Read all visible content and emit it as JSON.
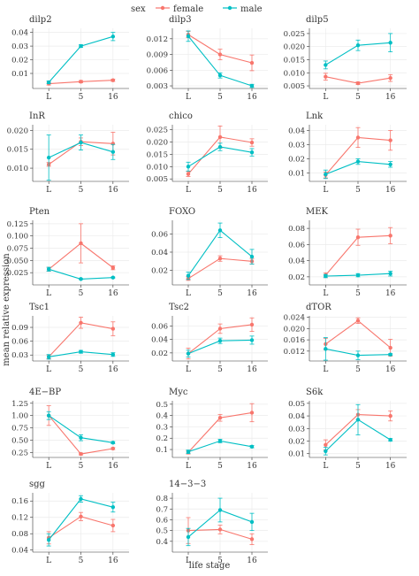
{
  "legend": {
    "title": "sex",
    "entries": [
      {
        "label": "female",
        "color": "#F8766D"
      },
      {
        "label": "male",
        "color": "#00BFC4"
      }
    ]
  },
  "xlabel": "life stage",
  "ylabel": "mean relative expression",
  "chart_data": [
    {
      "type": "line",
      "title": "dilp2",
      "categories": [
        "L",
        "5",
        "16"
      ],
      "yticks": [
        0.01,
        0.02,
        0.03,
        0.04
      ],
      "ylim": [
        -0.001,
        0.043
      ],
      "series": [
        {
          "name": "female",
          "values": [
            0.0025,
            0.004,
            0.005
          ],
          "err": [
            0.001,
            0.0008,
            0.0008
          ]
        },
        {
          "name": "male",
          "values": [
            0.0035,
            0.03,
            0.037
          ],
          "err": [
            0.001,
            0.001,
            0.003
          ]
        }
      ]
    },
    {
      "type": "line",
      "title": "dilp3",
      "categories": [
        "L",
        "5",
        "16"
      ],
      "yticks": [
        0.003,
        0.006,
        0.009,
        0.012
      ],
      "ylim": [
        0.0025,
        0.014
      ],
      "series": [
        {
          "name": "female",
          "values": [
            0.0128,
            0.009,
            0.0074
          ],
          "err": [
            0.0006,
            0.001,
            0.0015
          ]
        },
        {
          "name": "male",
          "values": [
            0.0125,
            0.005,
            0.003
          ],
          "err": [
            0.001,
            0.0005,
            0.0003
          ]
        }
      ]
    },
    {
      "type": "line",
      "title": "dilp5",
      "categories": [
        "L",
        "5",
        "16"
      ],
      "yticks": [
        0.005,
        0.01,
        0.015,
        0.02,
        0.025
      ],
      "ylim": [
        0.004,
        0.027
      ],
      "series": [
        {
          "name": "female",
          "values": [
            0.0085,
            0.006,
            0.008
          ],
          "err": [
            0.0013,
            0.0005,
            0.0013
          ]
        },
        {
          "name": "male",
          "values": [
            0.013,
            0.0205,
            0.0215
          ],
          "err": [
            0.0015,
            0.002,
            0.0035
          ]
        }
      ]
    },
    {
      "type": "line",
      "title": "InR",
      "categories": [
        "L",
        "5",
        "16"
      ],
      "yticks": [
        0.01,
        0.015,
        0.02
      ],
      "ylim": [
        0.0065,
        0.0215
      ],
      "series": [
        {
          "name": "female",
          "values": [
            0.011,
            0.017,
            0.0165
          ],
          "err": [
            0.0005,
            0.001,
            0.003
          ]
        },
        {
          "name": "male",
          "values": [
            0.0128,
            0.0168,
            0.0143
          ],
          "err": [
            0.006,
            0.002,
            0.002
          ]
        }
      ]
    },
    {
      "type": "line",
      "title": "chico",
      "categories": [
        "L",
        "5",
        "16"
      ],
      "yticks": [
        0.005,
        0.01,
        0.015,
        0.02,
        0.025
      ],
      "ylim": [
        0.004,
        0.027
      ],
      "series": [
        {
          "name": "female",
          "values": [
            0.007,
            0.022,
            0.0198
          ],
          "err": [
            0.001,
            0.0045,
            0.0015
          ]
        },
        {
          "name": "male",
          "values": [
            0.01,
            0.018,
            0.0158
          ],
          "err": [
            0.0018,
            0.0015,
            0.0015
          ]
        }
      ]
    },
    {
      "type": "line",
      "title": "Lnk",
      "categories": [
        "L",
        "5",
        "16"
      ],
      "yticks": [
        0.01,
        0.02,
        0.03,
        0.04
      ],
      "ylim": [
        0.004,
        0.044
      ],
      "series": [
        {
          "name": "female",
          "values": [
            0.0085,
            0.035,
            0.033
          ],
          "err": [
            0.002,
            0.007,
            0.007
          ]
        },
        {
          "name": "male",
          "values": [
            0.009,
            0.018,
            0.016
          ],
          "err": [
            0.003,
            0.002,
            0.002
          ]
        }
      ]
    },
    {
      "type": "line",
      "title": "Pten",
      "categories": [
        "L",
        "5",
        "16"
      ],
      "yticks": [
        0.025,
        0.05,
        0.075,
        0.1,
        0.125
      ],
      "ylim": [
        0.0,
        0.132
      ],
      "series": [
        {
          "name": "female",
          "values": [
            0.032,
            0.085,
            0.035
          ],
          "err": [
            0.004,
            0.04,
            0.004
          ]
        },
        {
          "name": "male",
          "values": [
            0.032,
            0.012,
            0.015
          ],
          "err": [
            0.004,
            0.001,
            0.001
          ]
        }
      ]
    },
    {
      "type": "line",
      "title": "FOXO",
      "categories": [
        "L",
        "5",
        "16"
      ],
      "yticks": [
        0.02,
        0.04,
        0.06
      ],
      "ylim": [
        0.004,
        0.075
      ],
      "series": [
        {
          "name": "female",
          "values": [
            0.011,
            0.033,
            0.03
          ],
          "err": [
            0.002,
            0.003,
            0.003
          ]
        },
        {
          "name": "male",
          "values": [
            0.014,
            0.064,
            0.035
          ],
          "err": [
            0.004,
            0.008,
            0.008
          ]
        }
      ]
    },
    {
      "type": "line",
      "title": "MEK",
      "categories": [
        "L",
        "5",
        "16"
      ],
      "yticks": [
        0.02,
        0.04,
        0.06,
        0.08
      ],
      "ylim": [
        0.01,
        0.09
      ],
      "series": [
        {
          "name": "female",
          "values": [
            0.022,
            0.069,
            0.071
          ],
          "err": [
            0.003,
            0.01,
            0.01
          ]
        },
        {
          "name": "male",
          "values": [
            0.021,
            0.022,
            0.024
          ],
          "err": [
            0.002,
            0.002,
            0.003
          ]
        }
      ]
    },
    {
      "type": "line",
      "title": "Tsc1",
      "categories": [
        "L",
        "5",
        "16"
      ],
      "yticks": [
        0.03,
        0.06,
        0.09
      ],
      "ylim": [
        0.017,
        0.115
      ],
      "series": [
        {
          "name": "female",
          "values": [
            0.026,
            0.1,
            0.087
          ],
          "err": [
            0.004,
            0.012,
            0.015
          ]
        },
        {
          "name": "male",
          "values": [
            0.026,
            0.037,
            0.031
          ],
          "err": [
            0.005,
            0.003,
            0.004
          ]
        }
      ]
    },
    {
      "type": "line",
      "title": "Tsc2",
      "categories": [
        "L",
        "5",
        "16"
      ],
      "yticks": [
        0.02,
        0.04,
        0.06
      ],
      "ylim": [
        0.008,
        0.075
      ],
      "series": [
        {
          "name": "female",
          "values": [
            0.019,
            0.056,
            0.062
          ],
          "err": [
            0.008,
            0.007,
            0.01
          ]
        },
        {
          "name": "male",
          "values": [
            0.019,
            0.038,
            0.039
          ],
          "err": [
            0.005,
            0.004,
            0.006
          ]
        }
      ]
    },
    {
      "type": "line",
      "title": "dTOR",
      "categories": [
        "L",
        "5",
        "16"
      ],
      "yticks": [
        0.012,
        0.016,
        0.02,
        0.024
      ],
      "ylim": [
        0.0085,
        0.0245
      ],
      "series": [
        {
          "name": "female",
          "values": [
            0.0145,
            0.0228,
            0.0132
          ],
          "err": [
            0.002,
            0.001,
            0.003
          ]
        },
        {
          "name": "male",
          "values": [
            0.0128,
            0.0105,
            0.0108
          ],
          "err": [
            0.004,
            0.0015,
            0.0003
          ]
        }
      ]
    },
    {
      "type": "line",
      "title": "4E−BP",
      "categories": [
        "L",
        "5",
        "16"
      ],
      "yticks": [
        0.25,
        0.5,
        0.75,
        1.0,
        1.25
      ],
      "ylim": [
        0.15,
        1.3
      ],
      "series": [
        {
          "name": "female",
          "values": [
            1.0,
            0.22,
            0.33
          ],
          "err": [
            0.2,
            0.02,
            0.02
          ]
        },
        {
          "name": "male",
          "values": [
            1.0,
            0.55,
            0.45
          ],
          "err": [
            0.08,
            0.06,
            0.02
          ]
        }
      ]
    },
    {
      "type": "line",
      "title": "Myc",
      "categories": [
        "L",
        "5",
        "16"
      ],
      "yticks": [
        0.1,
        0.2,
        0.3,
        0.4,
        0.5
      ],
      "ylim": [
        0.03,
        0.53
      ],
      "series": [
        {
          "name": "female",
          "values": [
            0.075,
            0.38,
            0.425
          ],
          "err": [
            0.015,
            0.03,
            0.08
          ]
        },
        {
          "name": "male",
          "values": [
            0.08,
            0.175,
            0.125
          ],
          "err": [
            0.015,
            0.015,
            0.01
          ]
        }
      ]
    },
    {
      "type": "line",
      "title": "S6k",
      "categories": [
        "L",
        "5",
        "16"
      ],
      "yticks": [
        0.01,
        0.02,
        0.03,
        0.04,
        0.05
      ],
      "ylim": [
        0.007,
        0.052
      ],
      "series": [
        {
          "name": "female",
          "values": [
            0.017,
            0.041,
            0.04
          ],
          "err": [
            0.004,
            0.004,
            0.004
          ]
        },
        {
          "name": "male",
          "values": [
            0.012,
            0.037,
            0.021
          ],
          "err": [
            0.003,
            0.012,
            0.001
          ]
        }
      ]
    },
    {
      "type": "line",
      "title": "sgg",
      "categories": [
        "L",
        "5",
        "16"
      ],
      "yticks": [
        0.04,
        0.08,
        0.12,
        0.16
      ],
      "ylim": [
        0.035,
        0.18
      ],
      "series": [
        {
          "name": "female",
          "values": [
            0.07,
            0.122,
            0.1
          ],
          "err": [
            0.015,
            0.01,
            0.015
          ]
        },
        {
          "name": "male",
          "values": [
            0.065,
            0.165,
            0.145
          ],
          "err": [
            0.015,
            0.008,
            0.012
          ]
        }
      ]
    },
    {
      "type": "line",
      "title": "14−3−3",
      "categories": [
        "L",
        "5",
        "16"
      ],
      "yticks": [
        0.4,
        0.5,
        0.6,
        0.7,
        0.8
      ],
      "ylim": [
        0.3,
        0.85
      ],
      "series": [
        {
          "name": "female",
          "values": [
            0.5,
            0.51,
            0.42
          ],
          "err": [
            0.12,
            0.04,
            0.05
          ]
        },
        {
          "name": "male",
          "values": [
            0.44,
            0.69,
            0.58
          ],
          "err": [
            0.08,
            0.11,
            0.08
          ]
        }
      ]
    }
  ]
}
